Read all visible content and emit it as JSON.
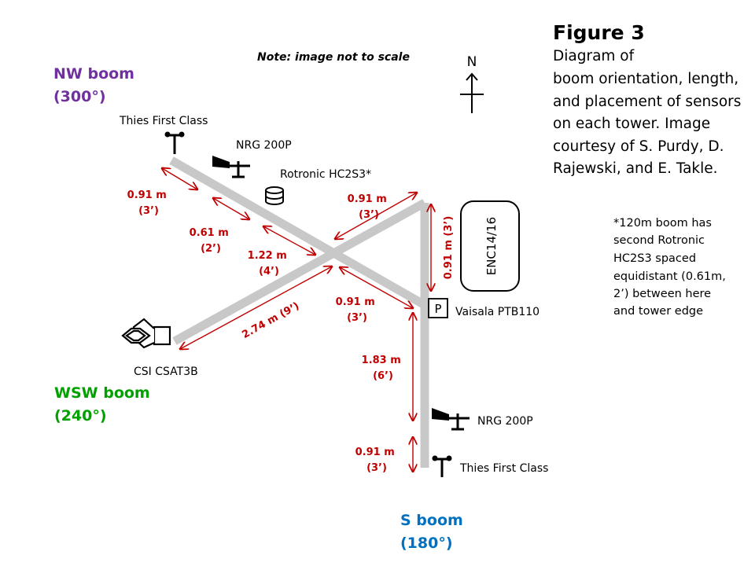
{
  "figure": {
    "title": "Figure 3",
    "caption_lines": [
      "Diagram of",
      "boom orientation, length,",
      "and placement of sensors",
      "on each tower.  Image",
      "courtesy of S. Purdy, D.",
      "Rajewski, and E. Takle."
    ]
  },
  "note": "Note: image not to scale",
  "north_label": "N",
  "footnote_lines": [
    "*120m boom has",
    "second Rotronic",
    "HC2S3 spaced",
    "equidistant (0.61m,",
    "2’) between here",
    "and tower edge"
  ],
  "booms": {
    "nw": {
      "name": "NW boom",
      "angle": "(300°)",
      "color": "#7030a0"
    },
    "wsw": {
      "name": "WSW boom",
      "angle": "(240°)",
      "color": "#00a000"
    },
    "s": {
      "name": "S boom",
      "angle": "(180°)",
      "color": "#0070c0"
    }
  },
  "sensors": {
    "thies_nw": "Thies  First Class",
    "nrg_nw": "NRG 200P",
    "rotronic": "Rotronic HC2S3*",
    "csat": "CSI CSAT3B",
    "vaisala": "Vaisala PTB110",
    "vaisala_symbol": "P",
    "nrg_s": "NRG 200P",
    "thies_s": "Thies  First Class",
    "enc": "ENC14/16"
  },
  "measurements": {
    "nw_091": {
      "m": "0.91 m",
      "ft": "(3’)"
    },
    "nw_061": {
      "m": "0.61 m",
      "ft": "(2’)"
    },
    "nw_122": {
      "m": "1.22 m",
      "ft": "(4’)"
    },
    "ne_091": {
      "m": "0.91 m",
      "ft": "(3’)"
    },
    "enc_091": "0.91 m (3’)",
    "wsw_274": "2.74 m (9’)",
    "s_091_top": {
      "m": "0.91 m",
      "ft": "(3’)"
    },
    "s_183": {
      "m": "1.83 m",
      "ft": "(6’)"
    },
    "s_091_bot": {
      "m": "0.91 m",
      "ft": "(3’)"
    }
  },
  "colors": {
    "boom": "#c8c8c8",
    "measure": "#c00000"
  }
}
